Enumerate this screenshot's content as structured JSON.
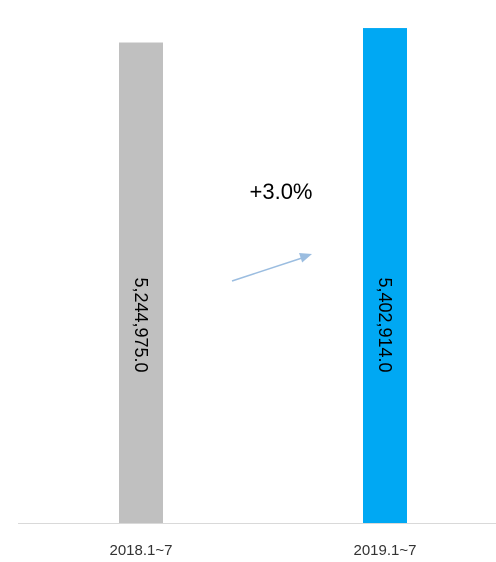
{
  "chart_data": {
    "type": "bar",
    "categories": [
      "2018.1~7",
      "2019.1~7"
    ],
    "values": [
      5244975.0,
      5402914.0
    ],
    "data_labels": [
      "5,244,975.0",
      "5,402,914.0"
    ],
    "bar_colors": [
      "#c0c0c0",
      "#00a8f3"
    ],
    "ylim": [
      0,
      5600000
    ],
    "grid": false,
    "legend": "none",
    "annotation": {
      "text": "+3.0%",
      "arrow_color": "#9bbde0"
    },
    "axis_color": "#d9d9d9"
  }
}
